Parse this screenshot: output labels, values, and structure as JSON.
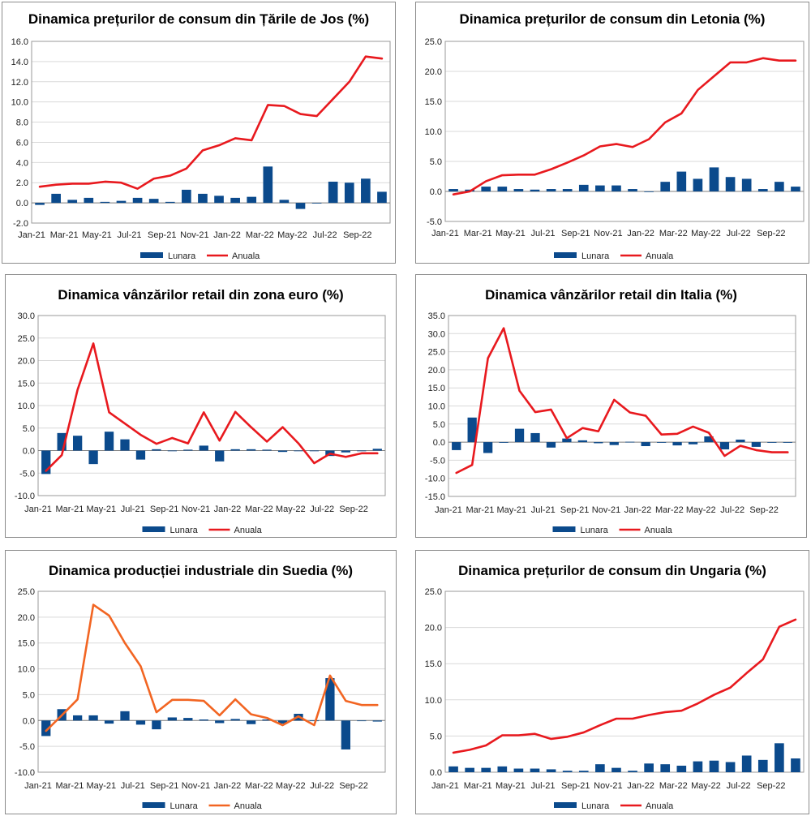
{
  "colors": {
    "bar": "#0b4a8c",
    "line_red": "#e8191e",
    "line_orange": "#f26522"
  },
  "chart_data": [
    {
      "type": "bar+line",
      "title": "Dinamica prețurilor de consum din Țările de Jos (%)",
      "x_tick_labels": [
        "Jan-21",
        "Mar-21",
        "May-21",
        "Jul-21",
        "Sep-21",
        "Nov-21",
        "Jan-22",
        "Mar-22",
        "May-22",
        "Jul-22",
        "Sep-22"
      ],
      "ylim": [
        -2,
        16
      ],
      "yticks": [
        -2.0,
        0.0,
        2.0,
        4.0,
        6.0,
        8.0,
        10.0,
        12.0,
        14.0,
        16.0
      ],
      "series": [
        {
          "name": "Lunara",
          "kind": "bar",
          "values": [
            -0.2,
            0.9,
            0.3,
            0.5,
            0.1,
            0.2,
            0.5,
            0.4,
            0.1,
            1.3,
            0.9,
            0.7,
            0.5,
            0.6,
            3.6,
            0.3,
            -0.6,
            0.0,
            2.1,
            2.0,
            2.4,
            1.1
          ]
        },
        {
          "name": "Anuala",
          "kind": "line",
          "color": "red",
          "values": [
            1.6,
            1.8,
            1.9,
            1.9,
            2.1,
            2.0,
            1.4,
            2.4,
            2.7,
            3.4,
            5.2,
            5.7,
            6.4,
            6.2,
            9.7,
            9.6,
            8.8,
            8.6,
            10.3,
            12.0,
            14.5,
            14.3
          ]
        }
      ]
    },
    {
      "type": "bar+line",
      "title": "Dinamica prețurilor de consum din Letonia (%)",
      "x_tick_labels": [
        "Jan-21",
        "Mar-21",
        "May-21",
        "Jul-21",
        "Sep-21",
        "Nov-21",
        "Jan-22",
        "Mar-22",
        "May-22",
        "Jul-22",
        "Sep-22"
      ],
      "ylim": [
        -5,
        25
      ],
      "yticks": [
        -5.0,
        0.0,
        5.0,
        10.0,
        15.0,
        20.0,
        25.0
      ],
      "series": [
        {
          "name": "Lunara",
          "kind": "bar",
          "values": [
            0.4,
            0.3,
            0.8,
            0.8,
            0.4,
            0.3,
            0.4,
            0.4,
            1.1,
            1.0,
            1.0,
            0.4,
            0.0,
            1.6,
            3.3,
            2.1,
            4.0,
            2.4,
            2.1,
            0.4,
            1.6,
            0.8
          ]
        },
        {
          "name": "Anuala",
          "kind": "line",
          "color": "red",
          "values": [
            -0.5,
            0.0,
            1.7,
            2.7,
            2.8,
            2.8,
            3.7,
            4.8,
            6.0,
            7.5,
            7.9,
            7.4,
            8.7,
            11.5,
            13.0,
            16.9,
            19.2,
            21.5,
            21.5,
            22.2,
            21.8,
            21.8
          ]
        }
      ]
    },
    {
      "type": "bar+line",
      "title": "Dinamica vânzărilor retail din zona euro (%)",
      "x_tick_labels": [
        "Jan-21",
        "Mar-21",
        "May-21",
        "Jul-21",
        "Sep-21",
        "Nov-21",
        "Jan-22",
        "Mar-22",
        "May-22",
        "Jul-22",
        "Sep-22"
      ],
      "ylim": [
        -10,
        30
      ],
      "yticks": [
        -10.0,
        -5.0,
        0.0,
        5.0,
        10.0,
        15.0,
        20.0,
        25.0,
        30.0
      ],
      "series": [
        {
          "name": "Lunara",
          "kind": "bar",
          "values": [
            -5.2,
            3.9,
            3.3,
            -3.0,
            4.2,
            2.5,
            -2.0,
            0.3,
            -0.1,
            0.2,
            1.1,
            -2.4,
            0.3,
            0.3,
            0.2,
            -0.3,
            0.0,
            0.0,
            -1.2,
            -0.4,
            0.0,
            0.4
          ]
        },
        {
          "name": "Anuala",
          "kind": "line",
          "color": "red",
          "values": [
            -4.5,
            -1.0,
            13.5,
            23.8,
            8.5,
            6.0,
            3.5,
            1.5,
            2.8,
            1.6,
            8.5,
            2.2,
            8.6,
            5.2,
            2.0,
            5.2,
            1.6,
            -2.8,
            -0.7,
            -1.4,
            -0.6,
            -0.6
          ]
        }
      ]
    },
    {
      "type": "bar+line",
      "title": "Dinamica vânzărilor retail din Italia (%)",
      "x_tick_labels": [
        "Jan-21",
        "Mar-21",
        "May-21",
        "Jul-21",
        "Sep-21",
        "Nov-21",
        "Jan-22",
        "Mar-22",
        "May-22",
        "Jul-22",
        "Sep-22"
      ],
      "ylim": [
        -15,
        35
      ],
      "yticks": [
        -15.0,
        -10.0,
        -5.0,
        0.0,
        5.0,
        10.0,
        15.0,
        20.0,
        25.0,
        30.0,
        35.0
      ],
      "series": [
        {
          "name": "Lunara",
          "kind": "bar",
          "values": [
            -2.2,
            6.8,
            -3.0,
            0.0,
            3.7,
            2.5,
            -1.5,
            1.0,
            0.5,
            -0.3,
            -0.8,
            0.1,
            -1.1,
            -0.1,
            -0.9,
            -0.6,
            1.6,
            -2.0,
            0.7,
            -1.3,
            0.0,
            0.0
          ]
        },
        {
          "name": "Anuala",
          "kind": "line",
          "color": "red",
          "values": [
            -8.5,
            -6.3,
            23.2,
            31.5,
            14.2,
            8.3,
            9.0,
            1.1,
            3.9,
            3.0,
            11.7,
            8.2,
            7.3,
            2.1,
            2.3,
            4.3,
            2.6,
            -3.8,
            -1.0,
            -2.2,
            -2.8,
            -2.8
          ]
        }
      ]
    },
    {
      "type": "bar+line",
      "title": "Dinamica producției industriale din Suedia (%)",
      "x_tick_labels": [
        "Jan-21",
        "Mar-21",
        "May-21",
        "Jul-21",
        "Sep-21",
        "Nov-21",
        "Jan-22",
        "Mar-22",
        "May-22",
        "Jul-22",
        "Sep-22"
      ],
      "ylim": [
        -10,
        25
      ],
      "yticks": [
        -10.0,
        -5.0,
        0.0,
        5.0,
        10.0,
        15.0,
        20.0,
        25.0
      ],
      "series": [
        {
          "name": "Lunara",
          "kind": "bar",
          "values": [
            -3.0,
            2.2,
            1.0,
            1.0,
            -0.6,
            1.8,
            -0.8,
            -1.7,
            0.6,
            0.5,
            0.2,
            -0.5,
            0.3,
            -0.7,
            0.2,
            -0.6,
            1.3,
            0.0,
            8.2,
            -5.6,
            0.0,
            -0.2
          ]
        },
        {
          "name": "Anuala",
          "kind": "line",
          "color": "orange",
          "values": [
            -2.0,
            1.0,
            4.1,
            22.4,
            20.3,
            15.0,
            10.5,
            1.6,
            4.0,
            4.0,
            3.8,
            1.0,
            4.1,
            1.2,
            0.5,
            -0.9,
            0.8,
            -0.9,
            8.7,
            3.8,
            3.0,
            3.0
          ]
        }
      ]
    },
    {
      "type": "bar+line",
      "title": "Dinamica prețurilor de consum din Ungaria (%)",
      "x_tick_labels": [
        "Jan-21",
        "Mar-21",
        "May-21",
        "Jul-21",
        "Sep-21",
        "Nov-21",
        "Jan-22",
        "Mar-22",
        "May-22",
        "Jul-22",
        "Sep-22"
      ],
      "ylim": [
        0,
        25
      ],
      "yticks": [
        0.0,
        5.0,
        10.0,
        15.0,
        20.0,
        25.0
      ],
      "series": [
        {
          "name": "Lunara",
          "kind": "bar",
          "values": [
            0.8,
            0.6,
            0.6,
            0.8,
            0.5,
            0.5,
            0.4,
            0.2,
            0.2,
            1.1,
            0.6,
            0.2,
            1.2,
            1.1,
            0.9,
            1.5,
            1.6,
            1.4,
            2.3,
            1.7,
            4.0,
            1.9
          ]
        },
        {
          "name": "Anuala",
          "kind": "line",
          "color": "red",
          "values": [
            2.7,
            3.1,
            3.7,
            5.1,
            5.1,
            5.3,
            4.6,
            4.9,
            5.5,
            6.5,
            7.4,
            7.4,
            7.9,
            8.3,
            8.5,
            9.5,
            10.7,
            11.7,
            13.7,
            15.6,
            20.1,
            21.1
          ]
        }
      ]
    }
  ]
}
